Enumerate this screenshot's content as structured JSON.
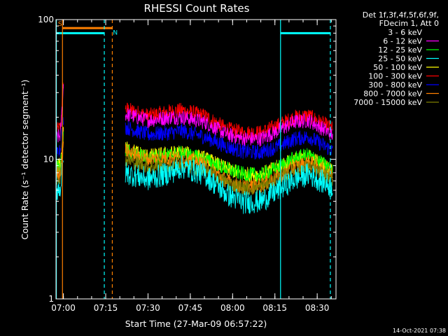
{
  "chart_data": {
    "type": "line",
    "title": "RHESSI Count Rates",
    "xlabel": "Start Time (27-Mar-09 06:57:22)",
    "ylabel": "Count Rate (s⁻¹ detector segment⁻¹)",
    "x_domain_minutes": [
      "06:57:22",
      "08:36:40"
    ],
    "ylim": [
      1,
      100
    ],
    "yscale": "log",
    "x_ticks": [
      {
        "t": "07:00",
        "label": "07:00"
      },
      {
        "t": "07:15",
        "label": "07:15"
      },
      {
        "t": "07:30",
        "label": "07:30"
      },
      {
        "t": "07:45",
        "label": "07:45"
      },
      {
        "t": "08:00",
        "label": "08:00"
      },
      {
        "t": "08:15",
        "label": "08:15"
      },
      {
        "t": "08:30",
        "label": "08:30"
      }
    ],
    "y_ticks": [
      {
        "v": 1,
        "label": "1"
      },
      {
        "v": 10,
        "label": "10"
      },
      {
        "v": 100,
        "label": "100"
      }
    ],
    "legend": {
      "placement": "right",
      "header": [
        "Det 1f,3f,4f,5f,6f,9f,",
        "FDecim 1, Att 0"
      ],
      "entries": [
        {
          "label": "3 - 6 keV",
          "color": "#000000"
        },
        {
          "label": "6 - 12 keV",
          "color": "#ff00ff"
        },
        {
          "label": "12 - 25 keV",
          "color": "#00ff00"
        },
        {
          "label": "25 - 50 keV",
          "color": "#00ffff"
        },
        {
          "label": "50 - 100 keV",
          "color": "#ffff00"
        },
        {
          "label": "100 - 300 keV",
          "color": "#ff0000"
        },
        {
          "label": "300 - 800 keV",
          "color": "#0000ff"
        },
        {
          "label": "800 - 7000 keV",
          "color": "#ff8000"
        },
        {
          "label": "7000 - 15000 keV",
          "color": "#808000"
        }
      ]
    },
    "x_knots": [
      "06:57:30",
      "06:59:00",
      "07:00:00",
      "07:19:00",
      "07:22:00",
      "07:30:00",
      "07:38:00",
      "07:42:00",
      "07:50:00",
      "07:58:00",
      "08:04:00",
      "08:10:00",
      "08:16:00",
      "08:22:00",
      "08:27:00",
      "08:35:30"
    ],
    "series": [
      {
        "name": "100 - 300 keV",
        "color": "#ff0000",
        "values": [
          16,
          17,
          36,
          null,
          23,
          20.5,
          22,
          22.5,
          20.5,
          16.5,
          15.5,
          15.5,
          17.5,
          20,
          20.5,
          16.5
        ]
      },
      {
        "name": "6 - 12 keV",
        "color": "#ff00ff",
        "values": [
          14,
          15,
          34,
          null,
          21,
          19,
          20,
          20,
          18.5,
          15,
          14,
          14,
          16,
          18.5,
          19,
          15
        ]
      },
      {
        "name": "300 - 800 keV",
        "color": "#0000ff",
        "values": [
          11,
          12,
          20,
          null,
          17,
          15,
          15.5,
          16,
          14.5,
          12.3,
          11.3,
          11.2,
          12.3,
          14,
          14.5,
          11.5
        ]
      },
      {
        "name": "3 - 6 keV",
        "color": "#000000",
        "values": [
          9.5,
          10,
          17,
          null,
          13,
          11.5,
          12,
          12,
          11,
          9,
          8.3,
          8.3,
          9.5,
          11,
          11.5,
          9
        ]
      },
      {
        "name": "50 - 100 keV",
        "color": "#ffff00",
        "values": [
          8.8,
          9.2,
          15.5,
          null,
          12,
          10.5,
          11,
          11.2,
          10.2,
          8.5,
          7.8,
          7.8,
          8.8,
          10,
          10.5,
          8.3
        ]
      },
      {
        "name": "12 - 25 keV",
        "color": "#00ff00",
        "values": [
          8.5,
          9,
          15,
          null,
          11.5,
          10.2,
          10.7,
          11,
          10,
          8.5,
          7.8,
          7.7,
          8.7,
          10.2,
          10.7,
          8.4
        ]
      },
      {
        "name": "800 - 7000 keV",
        "color": "#ff8000",
        "values": [
          7.8,
          8.2,
          14,
          null,
          11.5,
          10,
          10.2,
          10.2,
          9.2,
          7,
          6.3,
          6.5,
          7.5,
          8.8,
          9.5,
          7.8
        ]
      },
      {
        "name": "7000 - 15000 keV",
        "color": "#808000",
        "values": [
          7.2,
          7.6,
          12,
          null,
          10,
          8.8,
          9,
          9.2,
          8.3,
          6.8,
          6.2,
          6.3,
          7.2,
          8.4,
          8.8,
          7.2
        ]
      },
      {
        "name": "25 - 50 keV",
        "color": "#00ffff",
        "values": [
          6,
          6.3,
          10,
          null,
          8,
          7.2,
          8,
          8.8,
          7.8,
          5.6,
          4.9,
          5,
          6,
          7.2,
          7.8,
          6.3
        ]
      }
    ],
    "markers": [
      {
        "kind": "vline",
        "t": "06:57:30",
        "color": "#00ffff",
        "dash": false
      },
      {
        "kind": "vline",
        "t": "06:59:40",
        "color": "#ff8000",
        "dash": false
      },
      {
        "kind": "vline",
        "t": "07:14:30",
        "color": "#00ffff",
        "dash": true
      },
      {
        "kind": "vline",
        "t": "07:17:20",
        "color": "#ff8000",
        "dash": true
      },
      {
        "kind": "vline",
        "t": "08:17:00",
        "color": "#00ffff",
        "dash": false
      },
      {
        "kind": "vline",
        "t": "08:34:40",
        "color": "#00ffff",
        "dash": true
      }
    ],
    "bars": [
      {
        "t0": "06:57:22",
        "t1": "07:14:30",
        "v": 80,
        "color": "#00ffff"
      },
      {
        "t0": "06:59:40",
        "t1": "07:17:20",
        "v": 87,
        "color": "#ff8000"
      },
      {
        "t0": "08:17:00",
        "t1": "08:34:40",
        "v": 80,
        "color": "#00ffff"
      }
    ],
    "annotations": [
      {
        "text": "S",
        "t": "06:58:05",
        "v": 90,
        "color": "#ff8000"
      },
      {
        "text": "N",
        "t": "07:17:35",
        "v": 78,
        "color": "#00ffff"
      }
    ]
  },
  "footer": {
    "timestamp": "14-Oct-2021 07:38"
  }
}
